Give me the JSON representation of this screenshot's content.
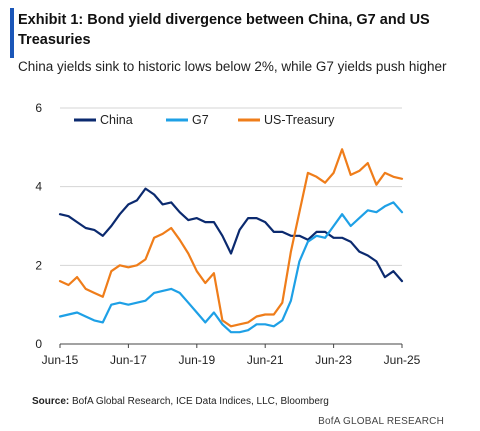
{
  "header": {
    "title": "Exhibit 1: Bond yield divergence between China, G7 and US Treasuries",
    "subtitle": "China yields sink to historic lows below 2%, while G7 yields push higher",
    "accent_color": "#1a56b8"
  },
  "footer": {
    "source_label": "Source:",
    "source_text": "BofA Global Research, ICE Data Indices, LLC, Bloomberg",
    "brand": "BofA GLOBAL RESEARCH"
  },
  "chart_data": {
    "type": "line",
    "title": "",
    "xlabel": "",
    "ylabel": "",
    "ylim": [
      0,
      6
    ],
    "yticks": [
      0,
      2,
      4,
      6
    ],
    "xlim": [
      "2015-06",
      "2025-06"
    ],
    "xticks": [
      "Jun-15",
      "Jun-17",
      "Jun-19",
      "Jun-21",
      "Jun-23",
      "Jun-25"
    ],
    "grid": "horizontal",
    "legend": "top-left",
    "x": [
      "2015-06",
      "2015-09",
      "2015-12",
      "2016-03",
      "2016-06",
      "2016-09",
      "2016-12",
      "2017-03",
      "2017-06",
      "2017-09",
      "2017-12",
      "2018-03",
      "2018-06",
      "2018-09",
      "2018-12",
      "2019-03",
      "2019-06",
      "2019-09",
      "2019-12",
      "2020-03",
      "2020-06",
      "2020-09",
      "2020-12",
      "2021-03",
      "2021-06",
      "2021-09",
      "2021-12",
      "2022-03",
      "2022-06",
      "2022-09",
      "2022-12",
      "2023-03",
      "2023-06",
      "2023-09",
      "2023-12",
      "2024-03",
      "2024-06",
      "2024-09",
      "2024-12",
      "2025-03",
      "2025-06"
    ],
    "series": [
      {
        "name": "China",
        "color": "#0b2a6f",
        "values": [
          3.3,
          3.25,
          3.1,
          2.95,
          2.9,
          2.75,
          3.0,
          3.3,
          3.55,
          3.65,
          3.95,
          3.8,
          3.55,
          3.6,
          3.35,
          3.15,
          3.2,
          3.1,
          3.1,
          2.75,
          2.3,
          2.9,
          3.2,
          3.2,
          3.1,
          2.85,
          2.85,
          2.75,
          2.75,
          2.65,
          2.85,
          2.85,
          2.7,
          2.7,
          2.6,
          2.35,
          2.25,
          2.1,
          1.7,
          1.85,
          1.6
        ]
      },
      {
        "name": "G7",
        "color": "#1ea0e6",
        "values": [
          0.7,
          0.75,
          0.8,
          0.7,
          0.6,
          0.55,
          1.0,
          1.05,
          1.0,
          1.05,
          1.1,
          1.3,
          1.35,
          1.4,
          1.3,
          1.05,
          0.8,
          0.55,
          0.8,
          0.5,
          0.3,
          0.3,
          0.35,
          0.5,
          0.5,
          0.45,
          0.6,
          1.1,
          2.1,
          2.6,
          2.75,
          2.7,
          3.0,
          3.3,
          3.0,
          3.2,
          3.4,
          3.35,
          3.5,
          3.6,
          3.35
        ]
      },
      {
        "name": "US-Treasury",
        "color": "#ef7d1a",
        "values": [
          1.6,
          1.5,
          1.7,
          1.4,
          1.3,
          1.2,
          1.85,
          2.0,
          1.95,
          2.0,
          2.15,
          2.7,
          2.8,
          2.95,
          2.65,
          2.3,
          1.85,
          1.55,
          1.8,
          0.6,
          0.45,
          0.5,
          0.55,
          0.7,
          0.75,
          0.75,
          1.05,
          2.35,
          3.35,
          4.35,
          4.25,
          4.1,
          4.35,
          4.95,
          4.3,
          4.4,
          4.6,
          4.05,
          4.35,
          4.25,
          4.2
        ]
      }
    ]
  }
}
